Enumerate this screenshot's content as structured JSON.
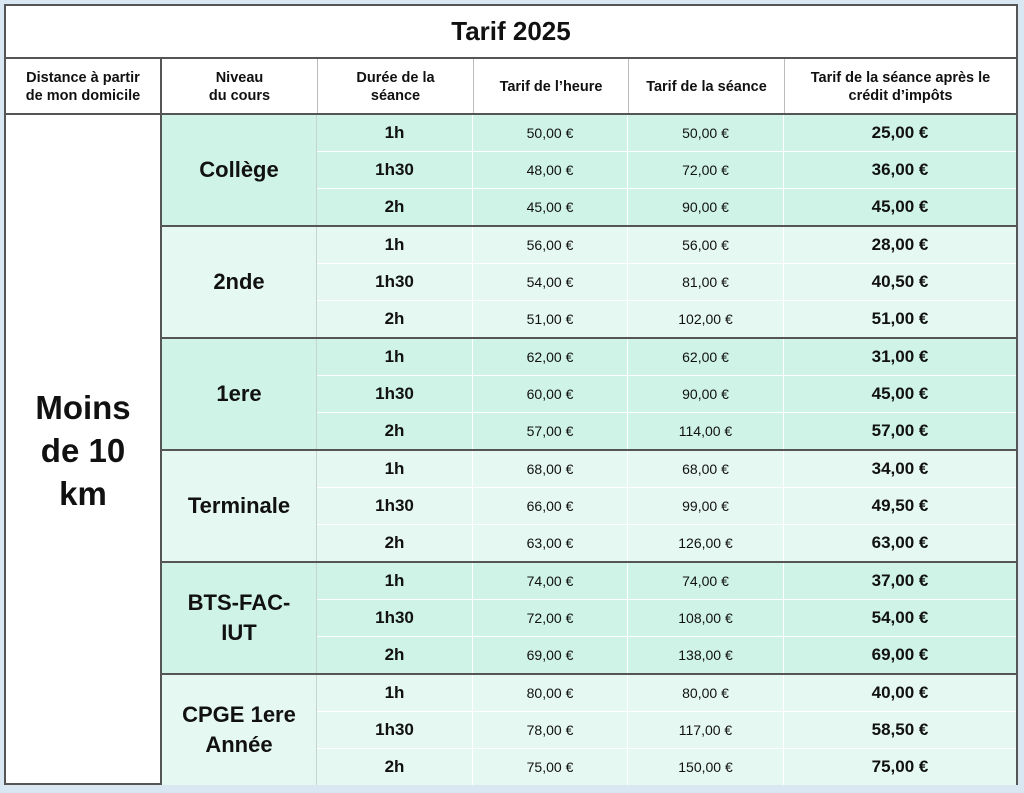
{
  "title": "Tarif 2025",
  "headers": {
    "distance": "Distance à partir\nde mon domicile",
    "niveau": "Niveau\ndu cours",
    "duree": "Durée de la\nséance",
    "tarif_heure": "Tarif de l’heure",
    "tarif_seance": "Tarif de la séance",
    "tarif_credit": "Tarif de la séance après le\ncrédit d’impôts"
  },
  "distance_value": "Moins\nde 10\nkm",
  "groups": [
    {
      "level": "Collège",
      "shade": "dark",
      "rows": [
        {
          "duree": "1h",
          "heure": "50,00 €",
          "seance": "50,00 €",
          "credit": "25,00 €"
        },
        {
          "duree": "1h30",
          "heure": "48,00 €",
          "seance": "72,00 €",
          "credit": "36,00 €"
        },
        {
          "duree": "2h",
          "heure": "45,00 €",
          "seance": "90,00 €",
          "credit": "45,00 €"
        }
      ]
    },
    {
      "level": "2nde",
      "shade": "light",
      "rows": [
        {
          "duree": "1h",
          "heure": "56,00 €",
          "seance": "56,00 €",
          "credit": "28,00 €"
        },
        {
          "duree": "1h30",
          "heure": "54,00 €",
          "seance": "81,00 €",
          "credit": "40,50 €"
        },
        {
          "duree": "2h",
          "heure": "51,00 €",
          "seance": "102,00 €",
          "credit": "51,00 €"
        }
      ]
    },
    {
      "level": "1ere",
      "shade": "dark",
      "rows": [
        {
          "duree": "1h",
          "heure": "62,00 €",
          "seance": "62,00 €",
          "credit": "31,00 €"
        },
        {
          "duree": "1h30",
          "heure": "60,00 €",
          "seance": "90,00 €",
          "credit": "45,00 €"
        },
        {
          "duree": "2h",
          "heure": "57,00 €",
          "seance": "114,00 €",
          "credit": "57,00 €"
        }
      ]
    },
    {
      "level": "Terminale",
      "shade": "light",
      "rows": [
        {
          "duree": "1h",
          "heure": "68,00 €",
          "seance": "68,00 €",
          "credit": "34,00 €"
        },
        {
          "duree": "1h30",
          "heure": "66,00 €",
          "seance": "99,00 €",
          "credit": "49,50 €"
        },
        {
          "duree": "2h",
          "heure": "63,00 €",
          "seance": "126,00 €",
          "credit": "63,00 €"
        }
      ]
    },
    {
      "level": "BTS-FAC-\nIUT",
      "shade": "dark",
      "rows": [
        {
          "duree": "1h",
          "heure": "74,00 €",
          "seance": "74,00 €",
          "credit": "37,00 €"
        },
        {
          "duree": "1h30",
          "heure": "72,00 €",
          "seance": "108,00 €",
          "credit": "54,00 €"
        },
        {
          "duree": "2h",
          "heure": "69,00 €",
          "seance": "138,00 €",
          "credit": "69,00 €"
        }
      ]
    },
    {
      "level": "CPGE 1ere\nAnnée",
      "shade": "light",
      "rows": [
        {
          "duree": "1h",
          "heure": "80,00 €",
          "seance": "80,00 €",
          "credit": "40,00 €"
        },
        {
          "duree": "1h30",
          "heure": "78,00 €",
          "seance": "117,00 €",
          "credit": "58,50 €"
        },
        {
          "duree": "2h",
          "heure": "75,00 €",
          "seance": "150,00 €",
          "credit": "75,00 €"
        }
      ]
    }
  ],
  "colors": {
    "dark_band": "#cff3e6",
    "light_band": "#e5f8f2",
    "border": "#555555",
    "background": "#d9e7f3"
  }
}
